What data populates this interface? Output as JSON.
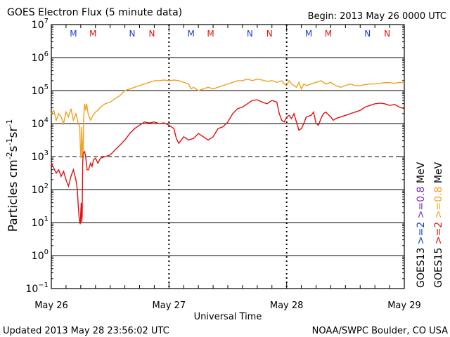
{
  "header": {
    "title": "GOES Electron Flux (5 minute data)",
    "begin": "Begin: 2013 May 26 0000 UTC"
  },
  "footer": {
    "updated": "Updated 2013 May 28 23:56:02 UTC",
    "credit": "NOAA/SWPC Boulder, CO USA"
  },
  "colors": {
    "goes13_0p8": "#7a2fb3",
    "goes15_0p8": "#f0a020",
    "goes13_2": "#1a3fd0",
    "goes15_2": "#e01010",
    "marker_M": "#e01010",
    "marker_N_blue": "#1a3fd0",
    "marker_N_red": "#e01010"
  },
  "chart_data": {
    "type": "line",
    "title": "GOES Electron Flux (5 minute data)",
    "xlabel": "Universal Time",
    "ylabel": "Particles cm-2s-1sr-1",
    "yscale": "log",
    "xlim": [
      0,
      72
    ],
    "ylim_exp": [
      -1,
      7
    ],
    "x_tick_labels": [
      "May 26",
      "May 27",
      "May 28",
      "May 29"
    ],
    "x_tick_hours": [
      0,
      24,
      48,
      72
    ],
    "y_tick_exponents": [
      -1,
      0,
      1,
      2,
      3,
      4,
      5,
      6,
      7
    ],
    "dashed_threshold_exp": 3,
    "marker_row": [
      {
        "label": "M",
        "hour": 4.5,
        "color": "#1a3fd0"
      },
      {
        "label": "M",
        "hour": 8.5,
        "color": "#e01010"
      },
      {
        "label": "N",
        "hour": 16.5,
        "color": "#1a3fd0"
      },
      {
        "label": "N",
        "hour": 20.5,
        "color": "#e01010"
      },
      {
        "label": "M",
        "hour": 28.5,
        "color": "#1a3fd0"
      },
      {
        "label": "M",
        "hour": 32.5,
        "color": "#e01010"
      },
      {
        "label": "N",
        "hour": 40.5,
        "color": "#1a3fd0"
      },
      {
        "label": "N",
        "hour": 44.5,
        "color": "#e01010"
      },
      {
        "label": "M",
        "hour": 52.5,
        "color": "#1a3fd0"
      },
      {
        "label": "M",
        "hour": 56.5,
        "color": "#e01010"
      },
      {
        "label": "N",
        "hour": 64.5,
        "color": "#1a3fd0"
      },
      {
        "label": "N",
        "hour": 68.5,
        "color": "#e01010"
      }
    ],
    "legend": [
      {
        "text": "GOES15",
        "color": "#000000"
      },
      {
        "text": ">=2",
        "color": "#e01010"
      },
      {
        "text": ">=0.8",
        "color": "#f0a020"
      },
      {
        "text": "MeV",
        "color": "#000000"
      },
      {
        "text": "GOES13",
        "color": "#000000"
      },
      {
        "text": ">=2",
        "color": "#1a3fd0"
      },
      {
        "text": ">=0.8",
        "color": "#7a2fb3"
      },
      {
        "text": "MeV",
        "color": "#000000"
      }
    ],
    "series": [
      {
        "name": "GOES15 >=0.8 MeV",
        "color": "#f0a020",
        "points": [
          [
            0,
            4.3
          ],
          [
            0.5,
            4.4
          ],
          [
            1,
            4.1
          ],
          [
            1.5,
            4.3
          ],
          [
            2,
            4.2
          ],
          [
            2.5,
            4.0
          ],
          [
            3,
            4.35
          ],
          [
            3.5,
            4.2
          ],
          [
            4,
            4.45
          ],
          [
            4.5,
            4.1
          ],
          [
            5,
            4.3
          ],
          [
            5.5,
            4.0
          ],
          [
            5.8,
            3.9
          ],
          [
            5.9,
            3.4
          ],
          [
            6,
            3.0
          ],
          [
            6.1,
            2.95
          ],
          [
            6.2,
            3.9
          ],
          [
            6.4,
            3.0
          ],
          [
            6.5,
            3.2
          ],
          [
            6.6,
            4.2
          ],
          [
            6.8,
            4.6
          ],
          [
            7,
            4.4
          ],
          [
            7.2,
            4.6
          ],
          [
            7.5,
            4.3
          ],
          [
            8,
            4.1
          ],
          [
            8.5,
            4.25
          ],
          [
            9,
            4.35
          ],
          [
            9.5,
            4.4
          ],
          [
            10,
            4.5
          ],
          [
            11,
            4.6
          ],
          [
            12,
            4.65
          ],
          [
            13,
            4.75
          ],
          [
            14,
            4.85
          ],
          [
            15,
            5.0
          ],
          [
            16,
            5.05
          ],
          [
            17,
            5.1
          ],
          [
            18,
            5.15
          ],
          [
            19,
            5.2
          ],
          [
            20,
            5.25
          ],
          [
            21,
            5.3
          ],
          [
            22,
            5.3
          ],
          [
            23,
            5.32
          ],
          [
            24,
            5.3
          ],
          [
            25,
            5.32
          ],
          [
            26,
            5.3
          ],
          [
            27,
            5.25
          ],
          [
            28,
            5.2
          ],
          [
            28.5,
            5.05
          ],
          [
            29,
            5.1
          ],
          [
            30,
            5.0
          ],
          [
            31,
            5.05
          ],
          [
            32,
            5.1
          ],
          [
            33,
            5.05
          ],
          [
            34,
            5.1
          ],
          [
            35,
            5.15
          ],
          [
            36,
            5.2
          ],
          [
            37,
            5.25
          ],
          [
            38,
            5.3
          ],
          [
            39,
            5.3
          ],
          [
            40,
            5.35
          ],
          [
            41,
            5.3
          ],
          [
            42,
            5.35
          ],
          [
            43,
            5.32
          ],
          [
            44,
            5.28
          ],
          [
            45,
            5.3
          ],
          [
            46,
            5.25
          ],
          [
            47,
            5.3
          ],
          [
            47.5,
            5.2
          ],
          [
            48,
            5.15
          ],
          [
            48.5,
            5.3
          ],
          [
            49,
            5.2
          ],
          [
            50,
            5.1
          ],
          [
            50.5,
            5.25
          ],
          [
            51,
            5.05
          ],
          [
            51.5,
            5.2
          ],
          [
            52,
            5.15
          ],
          [
            53,
            5.2
          ],
          [
            54,
            5.25
          ],
          [
            55,
            5.3
          ],
          [
            56,
            5.2
          ],
          [
            57,
            5.25
          ],
          [
            58,
            5.15
          ],
          [
            59,
            5.1
          ],
          [
            60,
            5.15
          ],
          [
            61,
            5.2
          ],
          [
            62,
            5.15
          ],
          [
            63,
            5.15
          ],
          [
            64,
            5.18
          ],
          [
            65,
            5.2
          ],
          [
            66,
            5.2
          ],
          [
            67,
            5.22
          ],
          [
            68,
            5.24
          ],
          [
            69,
            5.24
          ],
          [
            70,
            5.22
          ],
          [
            71,
            5.25
          ],
          [
            72,
            5.23
          ]
        ]
      },
      {
        "name": "GOES15 >=2 MeV",
        "color": "#e01010",
        "points": [
          [
            0,
            2.8
          ],
          [
            0.5,
            2.65
          ],
          [
            1,
            2.5
          ],
          [
            1.5,
            2.6
          ],
          [
            2,
            2.4
          ],
          [
            2.5,
            2.55
          ],
          [
            3,
            2.3
          ],
          [
            3.5,
            2.1
          ],
          [
            4,
            2.4
          ],
          [
            4.5,
            2.6
          ],
          [
            5,
            2.3
          ],
          [
            5.3,
            2.0
          ],
          [
            5.5,
            1.5
          ],
          [
            5.7,
            1.1
          ],
          [
            5.9,
            0.95
          ],
          [
            6.1,
            1.6
          ],
          [
            6.2,
            1.0
          ],
          [
            6.3,
            1.2
          ],
          [
            6.4,
            2.8
          ],
          [
            6.5,
            3.1
          ],
          [
            6.8,
            3.15
          ],
          [
            7,
            3.0
          ],
          [
            7.3,
            2.6
          ],
          [
            7.6,
            2.6
          ],
          [
            8,
            2.8
          ],
          [
            8.3,
            2.7
          ],
          [
            8.6,
            2.9
          ],
          [
            9,
            2.95
          ],
          [
            9.5,
            2.8
          ],
          [
            10,
            2.95
          ],
          [
            11,
            3.0
          ],
          [
            12,
            3.05
          ],
          [
            13,
            3.2
          ],
          [
            14,
            3.35
          ],
          [
            15,
            3.5
          ],
          [
            16,
            3.7
          ],
          [
            17,
            3.85
          ],
          [
            18,
            3.95
          ],
          [
            19,
            4.05
          ],
          [
            20,
            4.02
          ],
          [
            21,
            4.05
          ],
          [
            22,
            4.0
          ],
          [
            23,
            4.02
          ],
          [
            24,
            3.95
          ],
          [
            25,
            3.85
          ],
          [
            25.5,
            3.55
          ],
          [
            26,
            3.4
          ],
          [
            27,
            3.6
          ],
          [
            28,
            3.5
          ],
          [
            29,
            3.55
          ],
          [
            30,
            3.7
          ],
          [
            31,
            3.6
          ],
          [
            32,
            3.5
          ],
          [
            33,
            3.6
          ],
          [
            34,
            3.85
          ],
          [
            35,
            3.9
          ],
          [
            36,
            4.05
          ],
          [
            37,
            4.3
          ],
          [
            38,
            4.45
          ],
          [
            39,
            4.5
          ],
          [
            40,
            4.6
          ],
          [
            41,
            4.7
          ],
          [
            42,
            4.72
          ],
          [
            43,
            4.65
          ],
          [
            44,
            4.6
          ],
          [
            45,
            4.7
          ],
          [
            46,
            4.65
          ],
          [
            46.5,
            4.3
          ],
          [
            47,
            4.1
          ],
          [
            47.5,
            4.05
          ],
          [
            48,
            4.2
          ],
          [
            48.5,
            4.25
          ],
          [
            49,
            4.15
          ],
          [
            49.5,
            4.3
          ],
          [
            50,
            4.05
          ],
          [
            50.5,
            3.8
          ],
          [
            51,
            3.85
          ],
          [
            51.5,
            4.0
          ],
          [
            52,
            4.2
          ],
          [
            53,
            4.25
          ],
          [
            53.5,
            4.35
          ],
          [
            54,
            4.0
          ],
          [
            54.5,
            3.95
          ],
          [
            55,
            4.15
          ],
          [
            55.5,
            4.3
          ],
          [
            56,
            4.35
          ],
          [
            57,
            4.2
          ],
          [
            57.5,
            4.1
          ],
          [
            58,
            4.15
          ],
          [
            59,
            4.2
          ],
          [
            60,
            4.25
          ],
          [
            61,
            4.3
          ],
          [
            62,
            4.35
          ],
          [
            63,
            4.4
          ],
          [
            64,
            4.5
          ],
          [
            65,
            4.55
          ],
          [
            66,
            4.6
          ],
          [
            67,
            4.62
          ],
          [
            68,
            4.6
          ],
          [
            69,
            4.55
          ],
          [
            70,
            4.58
          ],
          [
            71,
            4.5
          ],
          [
            72,
            4.45
          ]
        ]
      }
    ]
  }
}
